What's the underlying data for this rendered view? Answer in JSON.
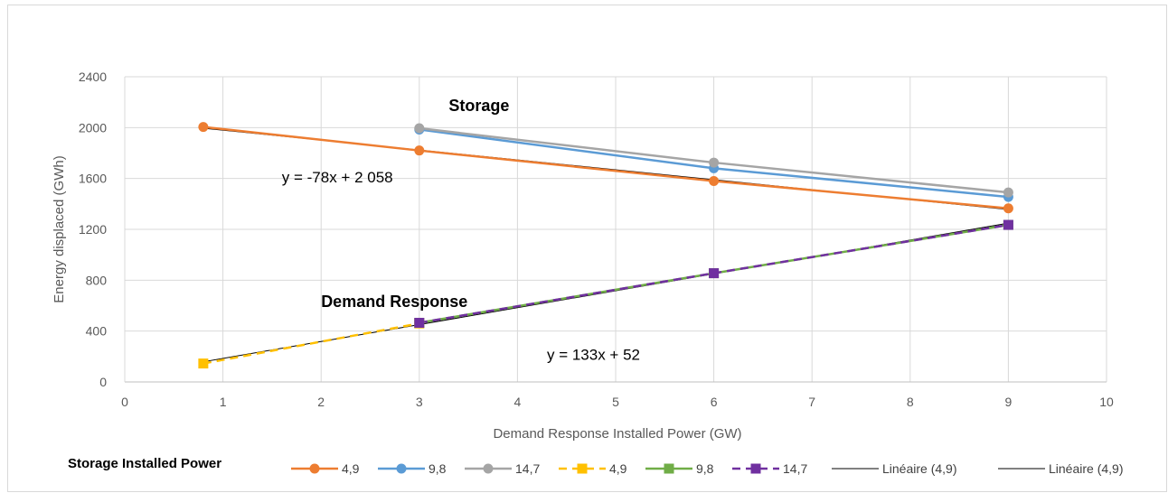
{
  "chart_data": {
    "type": "line",
    "xlabel": "Demand Response Installed Power (GW)",
    "ylabel": "Energy displaced  (GWh)",
    "xlim": [
      0,
      10
    ],
    "ylim": [
      0,
      2400
    ],
    "xticks": [
      0,
      1,
      2,
      3,
      4,
      5,
      6,
      7,
      8,
      9,
      10
    ],
    "yticks": [
      0,
      400,
      800,
      1200,
      1600,
      2000,
      2400
    ],
    "grid": "vertical and horizontal",
    "legend_title": "Storage Installed Power",
    "legend_position": "bottom",
    "annotations": [
      {
        "text": "Storage",
        "x": 3.3,
        "y": 2130,
        "bold": true
      },
      {
        "text": "Demand Response",
        "x": 2.0,
        "y": 590,
        "bold": true
      },
      {
        "text": "y = -78x + 2 058",
        "x": 1.6,
        "y": 1570,
        "bold": false
      },
      {
        "text": "y = 133x + 52",
        "x": 4.3,
        "y": 175,
        "bold": false
      }
    ],
    "series": [
      {
        "name": "4,9",
        "group": "storage",
        "color": "#ED7D31",
        "dash": false,
        "marker": "circle",
        "x": [
          0.8,
          3,
          6,
          9
        ],
        "y": [
          2005,
          1820,
          1580,
          1365
        ]
      },
      {
        "name": "9,8",
        "group": "storage",
        "color": "#5B9BD5",
        "dash": false,
        "marker": "circle",
        "x": [
          3,
          6,
          9
        ],
        "y": [
          1985,
          1680,
          1455
        ]
      },
      {
        "name": "14,7",
        "group": "storage",
        "color": "#A5A5A5",
        "dash": false,
        "marker": "circle",
        "x": [
          3,
          6,
          9
        ],
        "y": [
          1995,
          1725,
          1490
        ]
      },
      {
        "name": "4,9",
        "group": "demand",
        "color": "#FFC000",
        "dash": true,
        "marker": "square",
        "x": [
          0.8,
          3
        ],
        "y": [
          145,
          460
        ]
      },
      {
        "name": "9,8",
        "group": "demand",
        "color": "#70AD47",
        "dash": false,
        "marker": "square",
        "x": [
          3,
          6,
          9
        ],
        "y": [
          465,
          855,
          1235
        ]
      },
      {
        "name": "14,7",
        "group": "demand",
        "color": "#7030A0",
        "dash": true,
        "marker": "square",
        "x": [
          3,
          6,
          9
        ],
        "y": [
          465,
          855,
          1235
        ]
      }
    ],
    "trendlines": [
      {
        "name": "Linéaire (4,9)",
        "color": "#000000",
        "slope": -78,
        "intercept": 2058,
        "x_range": [
          0.8,
          9
        ]
      },
      {
        "name": "Linéaire (4,9)",
        "color": "#000000",
        "slope": 133,
        "intercept": 52,
        "x_range": [
          0.8,
          9
        ]
      }
    ]
  }
}
